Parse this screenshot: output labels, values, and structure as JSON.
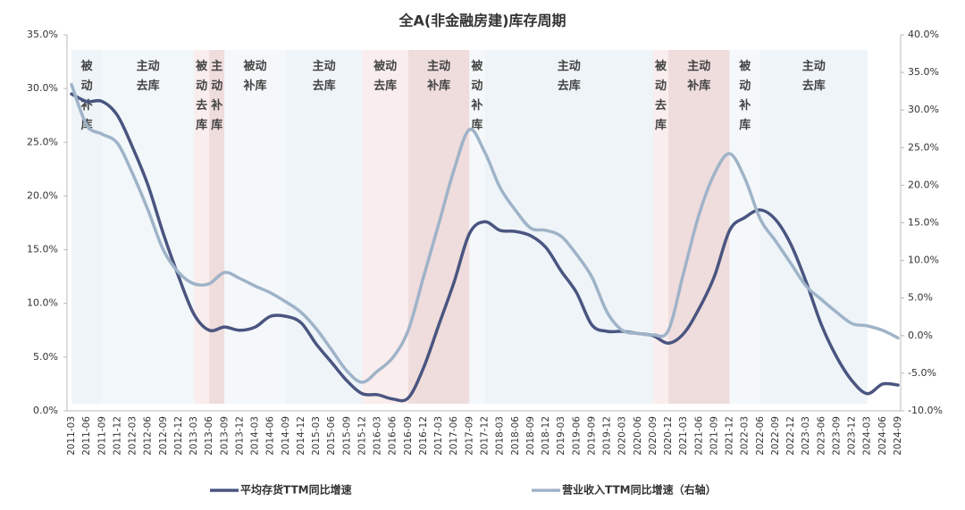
{
  "chart_data": {
    "type": "line",
    "title": "全A(非金融房建)库存周期",
    "categories": [
      "2011-03",
      "2011-06",
      "2011-09",
      "2011-12",
      "2012-03",
      "2012-06",
      "2012-09",
      "2012-12",
      "2013-03",
      "2013-06",
      "2013-09",
      "2013-12",
      "2014-03",
      "2014-06",
      "2014-09",
      "2014-12",
      "2015-03",
      "2015-06",
      "2015-09",
      "2015-12",
      "2016-03",
      "2016-06",
      "2016-09",
      "2016-12",
      "2017-03",
      "2017-06",
      "2017-09",
      "2017-12",
      "2018-03",
      "2018-06",
      "2018-09",
      "2018-12",
      "2019-03",
      "2019-06",
      "2019-09",
      "2019-12",
      "2020-03",
      "2020-06",
      "2020-09",
      "2020-12",
      "2021-03",
      "2021-06",
      "2021-09",
      "2021-12",
      "2022-03",
      "2022-06",
      "2022-09",
      "2022-12",
      "2023-03",
      "2023-06",
      "2023-09",
      "2023-12",
      "2024-03",
      "2024-06",
      "2024-09"
    ],
    "series": [
      {
        "name": "平均存货TTM同比增速",
        "color": "#4a5580",
        "axis": "y",
        "values": [
          29.5,
          28.8,
          28.8,
          27.5,
          24.5,
          21,
          16.5,
          12.5,
          9,
          7.5,
          7.8,
          7.5,
          7.8,
          8.8,
          8.8,
          8.2,
          6.2,
          4.5,
          2.8,
          1.6,
          1.5,
          1.1,
          1.2,
          4,
          8,
          12,
          16.5,
          17.6,
          16.8,
          16.7,
          16.3,
          15.2,
          13,
          11,
          8,
          7.4,
          7.4,
          7.2,
          7.0,
          6.3,
          7.2,
          9.5,
          12.5,
          16.8,
          18,
          18.7,
          17.8,
          15.5,
          12,
          8,
          5,
          2.8,
          1.6,
          2.5,
          2.4
        ]
      },
      {
        "name": "营业收入TTM同比增速（右轴）",
        "color": "#9fb3c8",
        "axis": "y2",
        "values": [
          33.4,
          28,
          26.8,
          25.6,
          21.5,
          16.7,
          11.4,
          8.4,
          6.9,
          6.9,
          8.4,
          7.6,
          6.6,
          5.7,
          4.5,
          3.1,
          0.9,
          -1.9,
          -4.7,
          -6.2,
          -4.7,
          -2.9,
          0.7,
          7.8,
          14.9,
          22.1,
          27.4,
          24.4,
          19.7,
          16.7,
          14.3,
          14,
          13.2,
          10.8,
          7.8,
          3.1,
          0.7,
          0.3,
          0.1,
          0.7,
          8.4,
          16.1,
          21.5,
          24.2,
          20.9,
          15.5,
          12.6,
          9.6,
          6.6,
          4.8,
          3.1,
          1.6,
          1.3,
          0.7,
          -0.3
        ]
      }
    ],
    "ylim": [
      0,
      35
    ],
    "yticks": [
      {
        "value": 0,
        "label": "0.0%"
      },
      {
        "value": 5,
        "label": "5.0%"
      },
      {
        "value": 10,
        "label": "10.0%"
      },
      {
        "value": 15,
        "label": "15.0%"
      },
      {
        "value": 20,
        "label": "20.0%"
      },
      {
        "value": 25,
        "label": "25.0%"
      },
      {
        "value": 30,
        "label": "30.0%"
      },
      {
        "value": 35,
        "label": "35.0%"
      }
    ],
    "y2lim": [
      -10,
      40
    ],
    "y2ticks": [
      {
        "value": -10,
        "label": "-10.0%"
      },
      {
        "value": -5,
        "label": "-5.0%"
      },
      {
        "value": 0,
        "label": "0.0%"
      },
      {
        "value": 5,
        "label": "5.0%"
      },
      {
        "value": 10,
        "label": "10.0%"
      },
      {
        "value": 15,
        "label": "15.0%"
      },
      {
        "value": 20,
        "label": "20.0%"
      },
      {
        "value": 25,
        "label": "25.0%"
      },
      {
        "value": 30,
        "label": "30.0%"
      },
      {
        "value": 35,
        "label": "35.0%"
      },
      {
        "value": 40,
        "label": "40.0%"
      }
    ],
    "regions": [
      {
        "label": "被动补库",
        "start": "2011-03",
        "end": "2011-09",
        "color": "#eef4f8"
      },
      {
        "label": "主动去库",
        "start": "2011-09",
        "end": "2013-03",
        "color": "#f2f7fa"
      },
      {
        "label": "被动去库",
        "start": "2013-03",
        "end": "2013-06",
        "color": "#f9eded"
      },
      {
        "label": "主动补库",
        "start": "2013-06",
        "end": "2013-09",
        "color": "#efdcdc"
      },
      {
        "label": "被动补库",
        "start": "2013-09",
        "end": "2014-09",
        "color": "#f4f8fa"
      },
      {
        "label": "主动去库",
        "start": "2014-09",
        "end": "2015-12",
        "color": "#eef4f8"
      },
      {
        "label": "被动去库",
        "start": "2015-12",
        "end": "2016-09",
        "color": "#f9eded"
      },
      {
        "label": "主动补库",
        "start": "2016-09",
        "end": "2017-09",
        "color": "#efdcdc"
      },
      {
        "label": "被动补库",
        "start": "2017-09",
        "end": "2017-12",
        "color": "#f4f8fa"
      },
      {
        "label": "主动去库",
        "start": "2017-12",
        "end": "2020-09",
        "color": "#eef4f8"
      },
      {
        "label": "被动去库",
        "start": "2020-09",
        "end": "2020-12",
        "color": "#f9eded"
      },
      {
        "label": "主动补库",
        "start": "2020-12",
        "end": "2021-12",
        "color": "#efdcdc"
      },
      {
        "label": "被动补库",
        "start": "2021-12",
        "end": "2022-06",
        "color": "#f4f8fa"
      },
      {
        "label": "主动去库",
        "start": "2022-06",
        "end": "2024-03",
        "color": "#eef4f8"
      }
    ]
  }
}
